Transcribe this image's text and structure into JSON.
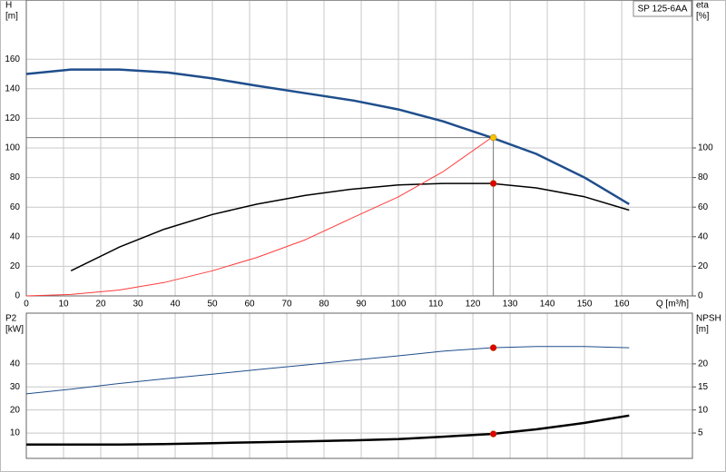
{
  "chart_data": [
    {
      "type": "line",
      "annotation": "SP 125-6AA",
      "ylabel": "H",
      "ylabel_unit": "[m]",
      "y2label": "eta",
      "y2label_unit": "[%]",
      "xlabel": "Q [m³/h]",
      "xlim": [
        0,
        179
      ],
      "xticks": [
        0,
        10,
        20,
        30,
        40,
        50,
        60,
        70,
        80,
        90,
        100,
        110,
        120,
        130,
        140,
        150,
        160
      ],
      "ylim": [
        0,
        200
      ],
      "yticks": [
        0,
        20,
        40,
        60,
        80,
        100,
        120,
        140,
        160
      ],
      "y2lim": [
        0,
        200
      ],
      "y2ticks": [
        0,
        20,
        40,
        60,
        80,
        100
      ],
      "grid": true,
      "crosshair": true,
      "series": [
        {
          "color": "#1f4e8c",
          "linewidth": 2.5,
          "x": [
            0,
            12,
            25,
            38,
            50,
            62,
            75,
            88,
            100,
            112,
            125,
            137,
            150,
            162
          ],
          "values": [
            150,
            153,
            153,
            151,
            147,
            142,
            137,
            132,
            126,
            118,
            107,
            96,
            80,
            62
          ]
        },
        {
          "color": "#000000",
          "linewidth": 1.5,
          "axis": "y2",
          "x": [
            12,
            25,
            37,
            50,
            62,
            75,
            87,
            100,
            112,
            125,
            137,
            150,
            162
          ],
          "values": [
            17,
            33,
            45,
            55,
            62,
            68,
            72,
            75,
            76,
            76,
            73,
            67,
            58
          ]
        },
        {
          "color": "#ff3b3b",
          "linewidth": 1,
          "x": [
            0,
            12,
            25,
            37,
            50,
            62,
            75,
            87,
            100,
            112,
            125
          ],
          "values": [
            0,
            1,
            4,
            9,
            17,
            26,
            38,
            52,
            67,
            84,
            107
          ]
        }
      ],
      "points": [
        {
          "x": 125.5,
          "y": 107,
          "color": "#f5c400"
        },
        {
          "x": 125.5,
          "y": 76,
          "axis": "y2",
          "color": "#e00000"
        }
      ]
    },
    {
      "type": "line",
      "ylabel": "P2",
      "ylabel_unit": "[kW]",
      "y2label": "NPSH",
      "y2label_unit": "[m]",
      "xlim": [
        0,
        179
      ],
      "xgrid": [
        0,
        10,
        20,
        30,
        40,
        50,
        60,
        70,
        80,
        90,
        100,
        110,
        120,
        130,
        140,
        150,
        160
      ],
      "ylim": [
        -1,
        62
      ],
      "yticks": [
        10,
        20,
        30,
        40
      ],
      "y2lim": [
        -0.5,
        31
      ],
      "y2ticks": [
        5,
        10,
        15,
        20
      ],
      "grid": true,
      "series": [
        {
          "color": "#1f4e8c",
          "linewidth": 1,
          "x": [
            0,
            12,
            25,
            37,
            50,
            62,
            75,
            87,
            100,
            112,
            125,
            137,
            150,
            162
          ],
          "values": [
            27,
            29,
            31.5,
            33.5,
            35.5,
            37.5,
            39.5,
            41.5,
            43.5,
            45.5,
            47,
            47.5,
            47.5,
            47
          ]
        },
        {
          "color": "#000000",
          "linewidth": 2.5,
          "axis": "y2",
          "x": [
            0,
            12,
            25,
            37,
            50,
            62,
            75,
            87,
            100,
            112,
            125,
            137,
            150,
            162
          ],
          "values": [
            2.5,
            2.5,
            2.5,
            2.6,
            2.8,
            3,
            3.2,
            3.4,
            3.7,
            4.2,
            4.8,
            5.8,
            7.2,
            8.8
          ]
        }
      ],
      "points": [
        {
          "x": 125.5,
          "y": 47,
          "color": "#e00000"
        },
        {
          "x": 125.5,
          "y": 4.8,
          "axis": "y2",
          "color": "#e00000"
        }
      ]
    }
  ]
}
